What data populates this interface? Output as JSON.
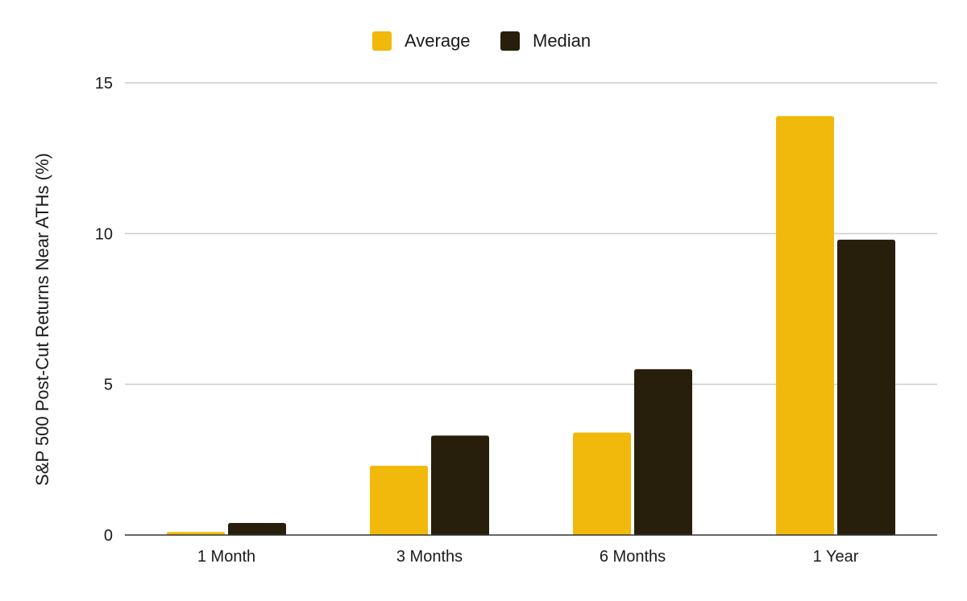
{
  "chart_data": {
    "type": "bar",
    "title": "",
    "xlabel": "",
    "ylabel": "S&P 500 Post-Cut Returns Near ATHs (%)",
    "categories": [
      "1 Month",
      "3 Months",
      "6 Months",
      "1 Year"
    ],
    "series": [
      {
        "name": "Average",
        "color": "#f0b90b",
        "values": [
          0.1,
          2.3,
          3.4,
          13.9
        ]
      },
      {
        "name": "Median",
        "color": "#271f0c",
        "values": [
          0.4,
          3.3,
          5.5,
          9.8
        ]
      }
    ],
    "ylim": [
      0,
      15
    ],
    "yticks": [
      0,
      5,
      10,
      15
    ],
    "grid": true,
    "legend": "top-center"
  }
}
